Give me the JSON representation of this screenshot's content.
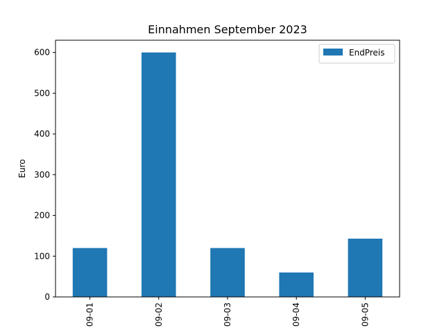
{
  "chart_data": {
    "type": "bar",
    "title": "Einnahmen September 2023",
    "xlabel": "",
    "ylabel": "Euro",
    "categories": [
      "09-01",
      "09-02",
      "09-03",
      "09-04",
      "09-05"
    ],
    "series": [
      {
        "name": "EndPreis",
        "values": [
          120,
          600,
          120,
          60,
          143
        ],
        "color": "#1f77b4"
      }
    ],
    "ylim": [
      0,
      630
    ],
    "yticks": [
      0,
      100,
      200,
      300,
      400,
      500,
      600
    ],
    "grid": false,
    "legend_position": "top-right"
  }
}
